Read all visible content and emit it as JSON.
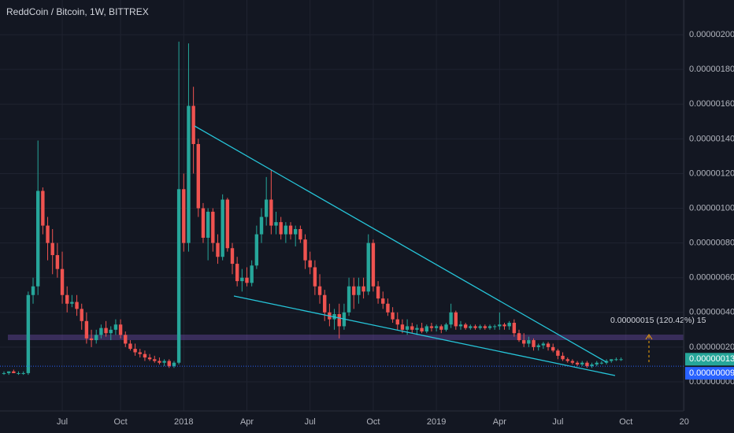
{
  "chart_data": {
    "type": "candlestick",
    "title": "ReddCoin / Bitcoin, 1W, BITTREX",
    "up_color": "#26a69a",
    "down_color": "#ef5350",
    "grid": true,
    "categories": [
      null,
      null,
      null,
      null,
      null,
      null,
      null,
      null,
      null,
      null,
      null,
      null,
      "Jul",
      null,
      null,
      null,
      null,
      null,
      null,
      null,
      null,
      null,
      null,
      null,
      "Oct",
      null,
      null,
      null,
      null,
      null,
      null,
      null,
      null,
      null,
      null,
      null,
      null,
      "2018",
      null,
      null,
      null,
      null,
      null,
      null,
      null,
      null,
      null,
      null,
      null,
      null,
      "Apr",
      null,
      null,
      null,
      null,
      null,
      null,
      null,
      null,
      null,
      null,
      null,
      null,
      "Jul",
      null,
      null,
      null,
      null,
      null,
      null,
      null,
      null,
      null,
      null,
      null,
      null,
      "Oct",
      null,
      null,
      null,
      null,
      null,
      null,
      null,
      null,
      null,
      null,
      null,
      null,
      "2019",
      null,
      null,
      null,
      null,
      null,
      null,
      null,
      null,
      null,
      null,
      null,
      null,
      "Apr",
      null,
      null,
      null,
      null,
      null,
      null,
      null,
      null,
      null,
      null,
      null,
      "Jul",
      null,
      null,
      null,
      null,
      null,
      null,
      null,
      null,
      null,
      null,
      null,
      null,
      null,
      "Oct",
      null,
      null,
      null,
      null,
      null,
      null,
      null,
      null,
      null,
      null,
      null,
      "20"
    ],
    "open": [
      5e-08,
      5e-08,
      6e-08,
      5e-08,
      5e-08,
      5e-08,
      5e-07,
      5.5e-07,
      1.1e-06,
      9e-07,
      8e-07,
      7.3e-07,
      6.5e-07,
      5e-07,
      4.5e-07,
      4.6e-07,
      4.2e-07,
      3.5e-07,
      2.5e-07,
      2.4e-07,
      2.7e-07,
      3.1e-07,
      2.8e-07,
      3e-07,
      3.3e-07,
      2.7e-07,
      2.2e-07,
      1.9e-07,
      1.7e-07,
      1.6e-07,
      1.4e-07,
      1.3e-07,
      1.2e-07,
      1.1e-07,
      1.2e-07,
      9e-08,
      1.1e-07,
      1.11e-06,
      8e-07,
      1.59e-06,
      1.37e-06,
      1e-06,
      8.3e-07,
      9.8e-07,
      8e-07,
      7.2e-07,
      1.05e-06,
      7.7e-07,
      6.8e-07,
      5.8e-07,
      6e-07,
      5.7e-07,
      6.7e-07,
      8.5e-07,
      9.5e-07,
      1.05e-06,
      9e-07,
      9.2e-07,
      8.5e-07,
      9e-07,
      8.5e-07,
      8.8e-07,
      8.2e-07,
      7e-07,
      6.6e-07,
      5.5e-07,
      5e-07,
      4e-07,
      3.6e-07,
      3.9e-07,
      3.2e-07,
      4e-07,
      5.5e-07,
      5e-07,
      5.5e-07,
      5.2e-07,
      8e-07,
      5.5e-07,
      4.8e-07,
      4.5e-07,
      4e-07,
      3.6e-07,
      3.3e-07,
      3e-07,
      3.2e-07,
      3e-07,
      3.1e-07,
      2.9e-07,
      3.2e-07,
      3.1e-07,
      3.2e-07,
      3e-07,
      3.3e-07,
      4e-07,
      3.2e-07,
      3.3e-07,
      3.1e-07,
      3.2e-07,
      3.1e-07,
      3.2e-07,
      3.1e-07,
      3.2e-07,
      3.2e-07,
      3.3e-07,
      3.2e-07,
      3.4e-07,
      2.8e-07,
      2.4e-07,
      2.2e-07,
      2.4e-07,
      2e-07,
      2.1e-07,
      2.2e-07,
      2e-07,
      1.8e-07,
      1.5e-07,
      1.3e-07,
      1.2e-07,
      1.1e-07,
      1e-07,
      1.1e-07,
      9e-08,
      1e-07,
      1.1e-07,
      1.1e-07,
      1.2e-07,
      1.3e-07,
      1.3e-07,
      null,
      null,
      null,
      null,
      null,
      null,
      null,
      null,
      null,
      null,
      null,
      null,
      null
    ],
    "high": [
      6e-08,
      6e-08,
      7e-08,
      6e-08,
      6e-08,
      5.2e-07,
      6e-07,
      1.39e-06,
      1.12e-06,
      9.5e-07,
      8.8e-07,
      8e-07,
      7.5e-07,
      5.5e-07,
      5e-07,
      5e-07,
      4.5e-07,
      4e-07,
      3e-07,
      3e-07,
      3.3e-07,
      3.5e-07,
      3.2e-07,
      3.6e-07,
      3.6e-07,
      2.9e-07,
      2.4e-07,
      2.2e-07,
      1.9e-07,
      1.8e-07,
      1.6e-07,
      1.5e-07,
      1.4e-07,
      1.3e-07,
      1.3e-07,
      1.2e-07,
      1.96e-06,
      1.2e-06,
      1.95e-06,
      1.7e-06,
      1.4e-06,
      1.03e-06,
      1e-06,
      1e-06,
      8.5e-07,
      1.08e-06,
      1.06e-06,
      8e-07,
      7.2e-07,
      6.5e-07,
      6.6e-07,
      7e-07,
      9e-07,
      1e-06,
      1.18e-06,
      1.22e-06,
      9.8e-07,
      9.5e-07,
      9.2e-07,
      9.2e-07,
      9e-07,
      9e-07,
      8.5e-07,
      7.5e-07,
      7e-07,
      6.2e-07,
      5.3e-07,
      4.5e-07,
      4.2e-07,
      4.5e-07,
      4.5e-07,
      6e-07,
      6e-07,
      6e-07,
      6e-07,
      8.5e-07,
      8.2e-07,
      5.8e-07,
      5.2e-07,
      4.8e-07,
      4.3e-07,
      4e-07,
      3.6e-07,
      3.6e-07,
      3.4e-07,
      3.3e-07,
      3.4e-07,
      3.3e-07,
      3.4e-07,
      3.3e-07,
      3.3e-07,
      3.4e-07,
      4.5e-07,
      4.1e-07,
      3.5e-07,
      3.4e-07,
      3.3e-07,
      3.3e-07,
      3.3e-07,
      3.3e-07,
      3.3e-07,
      3.3e-07,
      4e-07,
      3.4e-07,
      3.5e-07,
      3.6e-07,
      3e-07,
      2.8e-07,
      2.6e-07,
      2.5e-07,
      2.2e-07,
      2.3e-07,
      2.3e-07,
      2.2e-07,
      1.9e-07,
      1.7e-07,
      1.4e-07,
      1.3e-07,
      1.2e-07,
      1.2e-07,
      1.2e-07,
      1.1e-07,
      1.2e-07,
      1.2e-07,
      1.3e-07,
      1.3e-07,
      1.4e-07,
      1.4e-07,
      null,
      null,
      null,
      null,
      null,
      null,
      null,
      null,
      null,
      null,
      null,
      null,
      null
    ],
    "low": [
      4e-08,
      4e-08,
      5e-08,
      4e-08,
      4e-08,
      4e-08,
      4.5e-07,
      5e-07,
      8.5e-07,
      7e-07,
      6.2e-07,
      6e-07,
      4.5e-07,
      4e-07,
      4.3e-07,
      3.8e-07,
      3e-07,
      2.2e-07,
      2e-07,
      2.2e-07,
      2.5e-07,
      2.6e-07,
      2.4e-07,
      2.7e-07,
      2.5e-07,
      2e-07,
      1.8e-07,
      1.5e-07,
      1.4e-07,
      1.2e-07,
      1.2e-07,
      1.1e-07,
      1e-07,
      9e-08,
      8e-08,
      8e-08,
      1e-07,
      7.5e-07,
      7.5e-07,
      1.2e-06,
      9.5e-07,
      8e-07,
      7e-07,
      7.5e-07,
      6.8e-07,
      7e-07,
      7.5e-07,
      6.2e-07,
      5.5e-07,
      5.2e-07,
      5.5e-07,
      5.5e-07,
      6.5e-07,
      8e-07,
      9e-07,
      8.5e-07,
      8.5e-07,
      8.2e-07,
      8e-07,
      8.2e-07,
      7.8e-07,
      8e-07,
      6.5e-07,
      6.2e-07,
      5e-07,
      4.5e-07,
      3.5e-07,
      3.2e-07,
      3e-07,
      2.5e-07,
      3e-07,
      3.8e-07,
      4.2e-07,
      4.5e-07,
      4.8e-07,
      5e-07,
      5.2e-07,
      4.5e-07,
      4.2e-07,
      3.8e-07,
      3.4e-07,
      3e-07,
      2.8e-07,
      2.7e-07,
      2.8e-07,
      2.7e-07,
      2.8e-07,
      2.8e-07,
      2.9e-07,
      2.9e-07,
      2.8e-07,
      2.9e-07,
      3.1e-07,
      3e-07,
      3e-07,
      3e-07,
      3e-07,
      3e-07,
      3e-07,
      3e-07,
      3e-07,
      3e-07,
      3e-07,
      3e-07,
      3e-07,
      2.6e-07,
      2.3e-07,
      2e-07,
      2e-07,
      1.8e-07,
      1.8e-07,
      1.9e-07,
      1.8e-07,
      1.7e-07,
      1.3e-07,
      1.2e-07,
      1.1e-07,
      1e-07,
      9e-08,
      9e-08,
      8e-08,
      8e-08,
      9e-08,
      1e-07,
      1e-07,
      1.1e-07,
      1.2e-07,
      1.2e-07,
      null,
      null,
      null,
      null,
      null,
      null,
      null,
      null,
      null,
      null,
      null,
      null,
      null
    ],
    "close": [
      5e-08,
      6e-08,
      5e-08,
      5e-08,
      5e-08,
      5e-07,
      5.5e-07,
      1.1e-06,
      9e-07,
      8e-07,
      7.3e-07,
      6.5e-07,
      5e-07,
      4.5e-07,
      4.6e-07,
      4.2e-07,
      3.5e-07,
      2.5e-07,
      2.4e-07,
      2.7e-07,
      3.1e-07,
      2.8e-07,
      3e-07,
      3.3e-07,
      2.7e-07,
      2.2e-07,
      1.9e-07,
      1.7e-07,
      1.6e-07,
      1.4e-07,
      1.3e-07,
      1.2e-07,
      1.1e-07,
      1.2e-07,
      9e-08,
      1.1e-07,
      1.11e-06,
      8e-07,
      1.59e-06,
      1.37e-06,
      1e-06,
      8.3e-07,
      9.8e-07,
      8e-07,
      7.2e-07,
      1.05e-06,
      7.7e-07,
      6.8e-07,
      5.8e-07,
      6e-07,
      5.7e-07,
      6.7e-07,
      8.5e-07,
      9.5e-07,
      1.05e-06,
      9e-07,
      9.2e-07,
      8.5e-07,
      9e-07,
      8.5e-07,
      8.8e-07,
      8.2e-07,
      7e-07,
      6.6e-07,
      5.5e-07,
      5e-07,
      4e-07,
      3.6e-07,
      3.9e-07,
      3.2e-07,
      4e-07,
      5.5e-07,
      5e-07,
      5.5e-07,
      5.2e-07,
      8e-07,
      5.5e-07,
      4.8e-07,
      4.5e-07,
      4e-07,
      3.6e-07,
      3.3e-07,
      3e-07,
      3.2e-07,
      3e-07,
      3.1e-07,
      2.9e-07,
      3.2e-07,
      3.1e-07,
      3.2e-07,
      3e-07,
      3.3e-07,
      4e-07,
      3.2e-07,
      3.3e-07,
      3.1e-07,
      3.2e-07,
      3.1e-07,
      3.2e-07,
      3.1e-07,
      3.2e-07,
      3.2e-07,
      3.3e-07,
      3.2e-07,
      3.4e-07,
      2.8e-07,
      2.4e-07,
      2.2e-07,
      2.4e-07,
      2e-07,
      2.1e-07,
      2.2e-07,
      2e-07,
      1.8e-07,
      1.5e-07,
      1.3e-07,
      1.2e-07,
      1.1e-07,
      1e-07,
      1.1e-07,
      9e-08,
      1e-07,
      1.1e-07,
      1.1e-07,
      1.2e-07,
      1.3e-07,
      1.3e-07,
      1.3e-07,
      null,
      null,
      null,
      null,
      null,
      null,
      null,
      null,
      null,
      null,
      null,
      null,
      null
    ],
    "ylim": [
      -1.68e-07,
      2.2e-06
    ],
    "yticks": [
      {
        "value": 0,
        "label": "0.00000000"
      },
      {
        "value": 2e-07,
        "label": "0.00000020"
      },
      {
        "value": 4e-07,
        "label": "0.00000040"
      },
      {
        "value": 6e-07,
        "label": "0.00000060"
      },
      {
        "value": 8e-07,
        "label": "0.00000080"
      },
      {
        "value": 1e-06,
        "label": "0.00000100"
      },
      {
        "value": 1.2e-06,
        "label": "0.00000120"
      },
      {
        "value": 1.4e-06,
        "label": "0.00000140"
      },
      {
        "value": 1.6e-06,
        "label": "0.00000160"
      },
      {
        "value": 1.8e-06,
        "label": "0.00000180"
      },
      {
        "value": 2e-06,
        "label": "0.00000200"
      }
    ],
    "price_lines": [
      {
        "value": 1.3e-07,
        "label": "0.00000013",
        "color": "#26a69a"
      },
      {
        "value": 9e-08,
        "label": "0.00000009",
        "color": "#2962ff"
      }
    ],
    "measure_label": "0.00000015 (120.42%) 15"
  }
}
